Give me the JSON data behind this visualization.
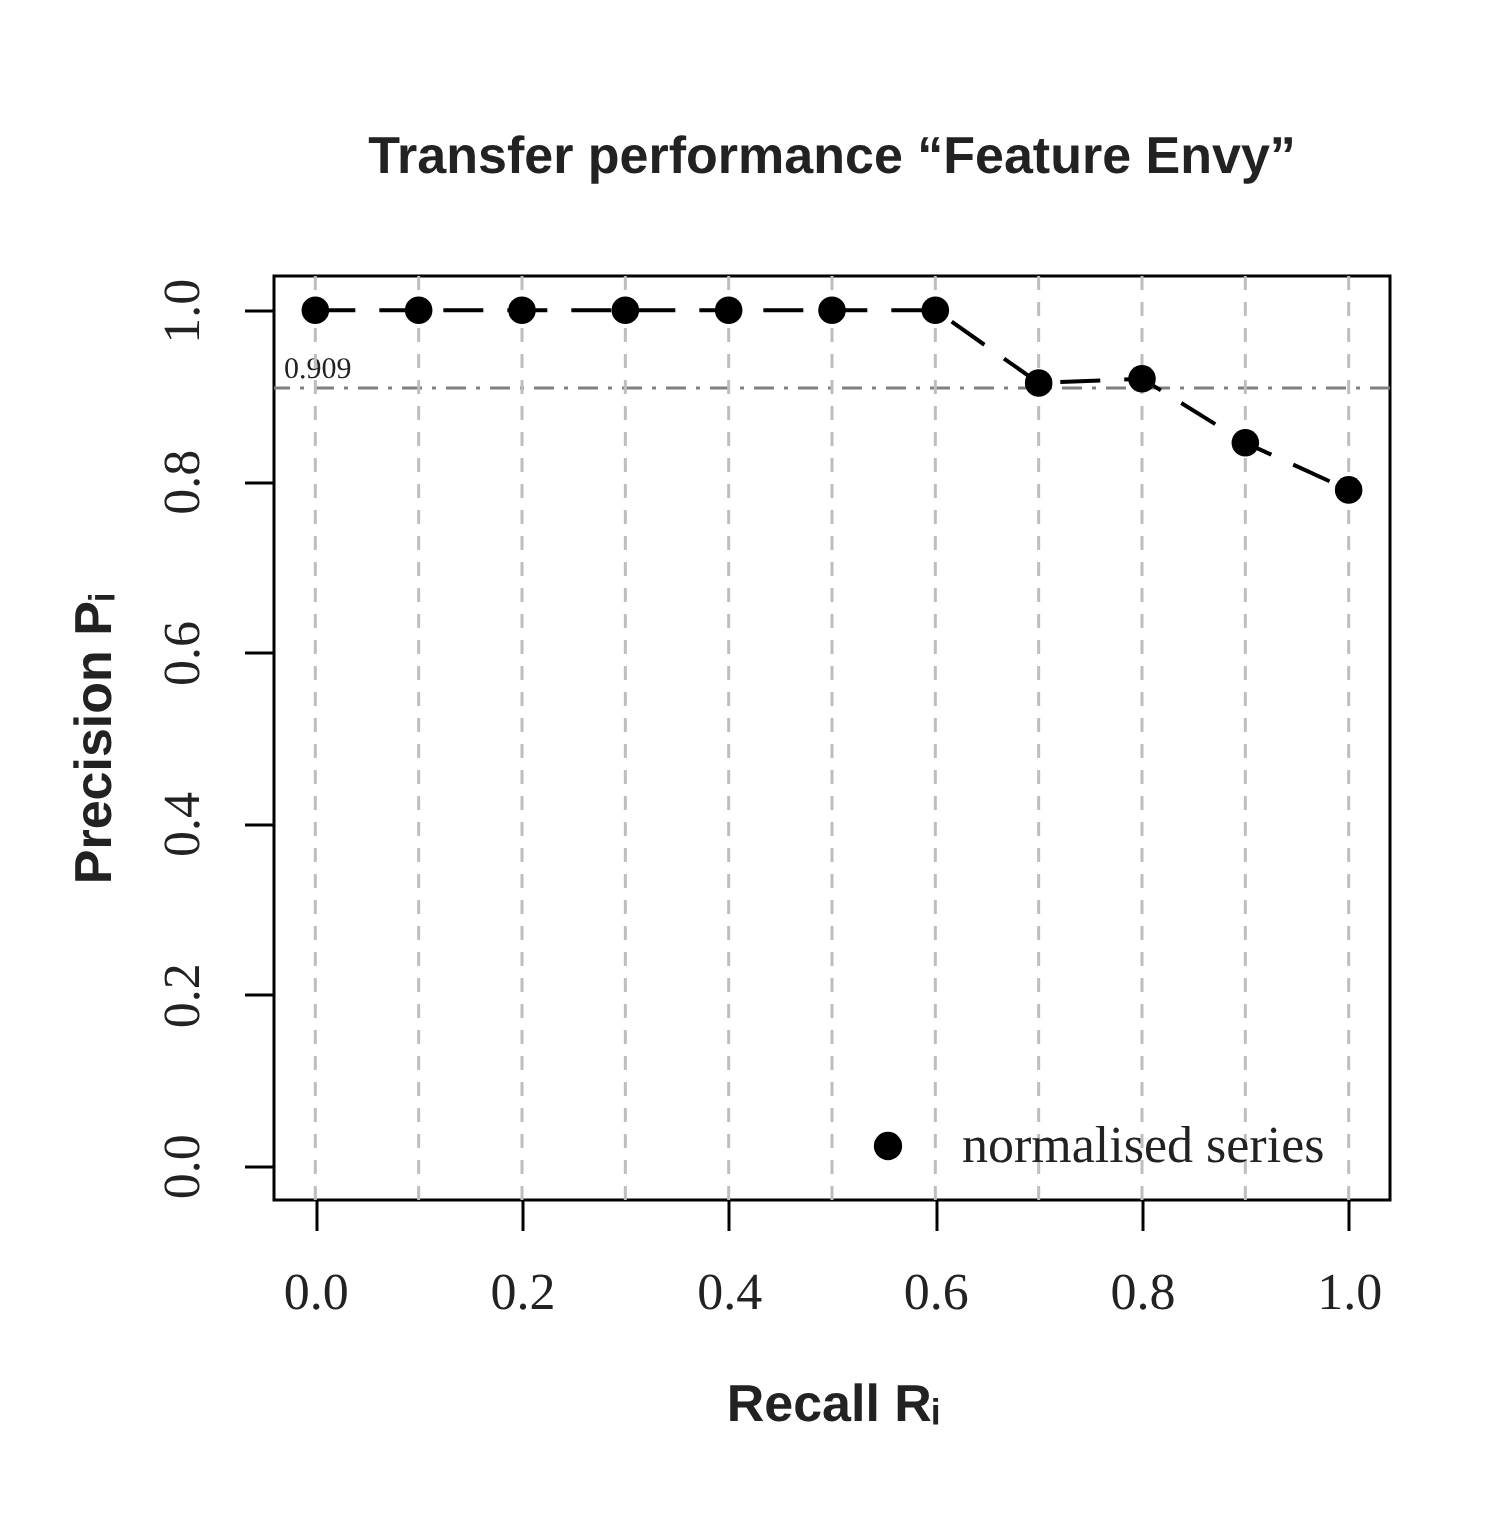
{
  "chart_data": {
    "type": "line",
    "title": "Transfer performance “Feature Envy”",
    "xlabel": "Recall Rᵢ",
    "ylabel": "Precision Pᵢ",
    "x": [
      0,
      0.1,
      0.2,
      0.3,
      0.4,
      0.5,
      0.6,
      0.7,
      0.8,
      0.9,
      1.0
    ],
    "series": [
      {
        "name": "normalised series",
        "color": "#000000",
        "values": [
          1,
          1,
          1,
          1,
          1,
          1,
          1,
          0.915,
          0.92,
          0.845,
          0.79
        ]
      }
    ],
    "xlim": [
      -0.04,
      1.04
    ],
    "ylim": [
      -0.04,
      1.04
    ],
    "xticks": [
      {
        "value": 0,
        "label": "0.0"
      },
      0.2,
      0.4,
      0.6,
      0.8,
      {
        "value": 1,
        "label": "1.0"
      }
    ],
    "yticks": [
      {
        "value": 0,
        "label": "0.0"
      },
      0.2,
      0.4,
      0.6,
      0.8,
      {
        "value": 1,
        "label": "1.0"
      }
    ],
    "ref_lines": [
      {
        "axis": "y",
        "value": 0.909,
        "label": "0.909",
        "color": "#808080",
        "line_style": "dashed"
      },
      {
        "axis": "x",
        "value": 0,
        "color": "#bebebe",
        "line_style": "dashed"
      },
      {
        "axis": "x",
        "value": 0.1,
        "color": "#bebebe",
        "line_style": "dashed"
      },
      {
        "axis": "x",
        "value": 0.2,
        "color": "#bebebe",
        "line_style": "dashed"
      },
      {
        "axis": "x",
        "value": 0.3,
        "color": "#bebebe",
        "line_style": "dashed"
      },
      {
        "axis": "x",
        "value": 0.4,
        "color": "#bebebe",
        "line_style": "dashed"
      },
      {
        "axis": "x",
        "value": 0.5,
        "color": "#bebebe",
        "line_style": "dashed"
      },
      {
        "axis": "x",
        "value": 0.6,
        "color": "#bebebe",
        "line_style": "dashed"
      },
      {
        "axis": "x",
        "value": 0.7,
        "color": "#bebebe",
        "line_style": "dashed"
      },
      {
        "axis": "x",
        "value": 0.8,
        "color": "#bebebe",
        "line_style": "dashed"
      },
      {
        "axis": "x",
        "value": 0.9,
        "color": "#bebebe",
        "line_style": "dashed"
      },
      {
        "axis": "x",
        "value": 1.0,
        "color": "#bebebe",
        "line_style": "dashed"
      }
    ],
    "legend": "bottom right",
    "marker": "circle",
    "line_style": "dashed"
  }
}
